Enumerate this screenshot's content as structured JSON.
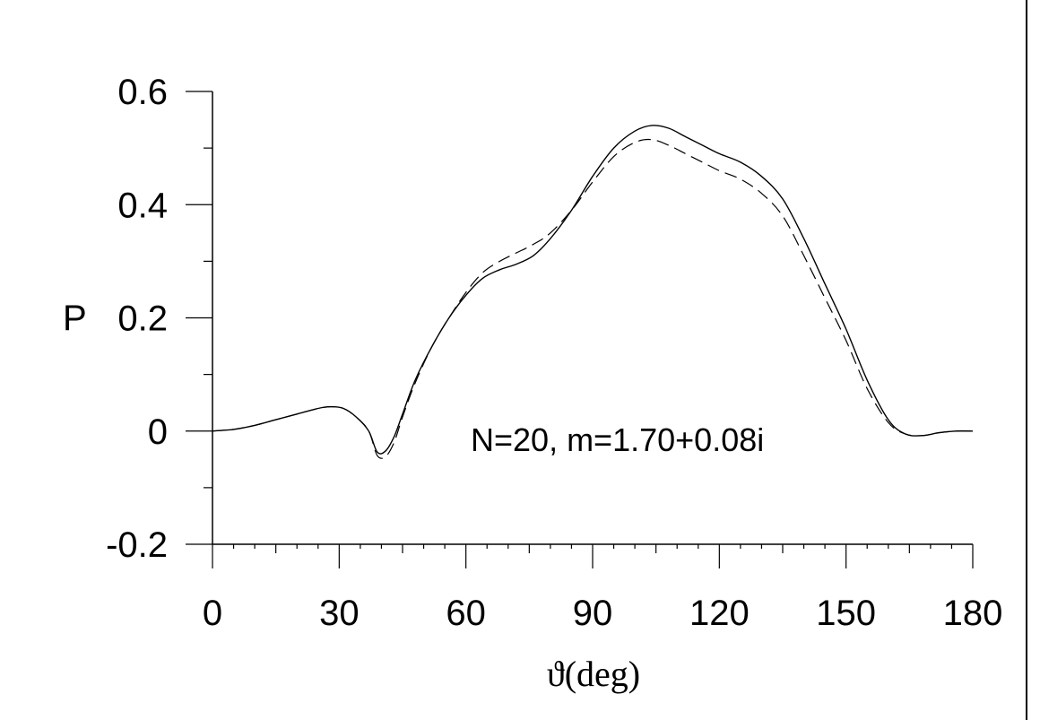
{
  "chart_data": {
    "type": "line",
    "title": "",
    "xlabel": "ϑ(deg)",
    "ylabel": "P",
    "xlim": [
      0,
      180
    ],
    "ylim": [
      -0.2,
      0.6
    ],
    "xticks": [
      0,
      30,
      60,
      90,
      120,
      150,
      180
    ],
    "yticks": [
      -0.2,
      0,
      0.2,
      0.4,
      0.6
    ],
    "xtick_labels": [
      "0",
      "30",
      "60",
      "90",
      "120",
      "150",
      "180"
    ],
    "ytick_labels": [
      "-0.2",
      "0",
      "0.2",
      "0.4",
      "0.6"
    ],
    "annotation": "N=20, m=1.70+0.08i",
    "grid": false,
    "series": [
      {
        "style": "solid",
        "x": [
          0,
          5,
          10,
          15,
          20,
          25,
          28,
          31,
          34,
          37,
          39,
          41,
          43,
          45,
          48,
          52,
          56,
          60,
          64,
          68,
          72,
          76,
          80,
          85,
          90,
          95,
          100,
          104,
          108,
          112,
          116,
          120,
          125,
          130,
          135,
          140,
          145,
          150,
          155,
          160,
          164,
          168,
          172,
          176,
          180
        ],
        "y": [
          0.0,
          0.003,
          0.01,
          0.02,
          0.03,
          0.04,
          0.043,
          0.04,
          0.025,
          0.0,
          -0.037,
          -0.035,
          -0.01,
          0.03,
          0.09,
          0.15,
          0.2,
          0.24,
          0.27,
          0.285,
          0.295,
          0.31,
          0.34,
          0.39,
          0.45,
          0.5,
          0.53,
          0.54,
          0.535,
          0.52,
          0.505,
          0.49,
          0.475,
          0.45,
          0.41,
          0.34,
          0.26,
          0.18,
          0.09,
          0.02,
          -0.005,
          -0.008,
          -0.003,
          0.0,
          0.0
        ]
      },
      {
        "style": "dashed",
        "x": [
          0,
          5,
          10,
          15,
          20,
          25,
          28,
          31,
          34,
          37,
          39,
          41,
          43,
          45,
          48,
          52,
          56,
          60,
          64,
          68,
          72,
          76,
          80,
          85,
          90,
          95,
          100,
          104,
          108,
          112,
          116,
          120,
          125,
          130,
          135,
          140,
          145,
          150,
          155,
          160,
          164,
          168,
          172,
          176,
          180
        ],
        "y": [
          0.0,
          0.003,
          0.01,
          0.02,
          0.03,
          0.04,
          0.043,
          0.04,
          0.025,
          0.0,
          -0.043,
          -0.045,
          -0.02,
          0.025,
          0.085,
          0.15,
          0.2,
          0.245,
          0.28,
          0.3,
          0.315,
          0.33,
          0.35,
          0.39,
          0.44,
          0.485,
          0.51,
          0.515,
          0.505,
          0.49,
          0.475,
          0.46,
          0.445,
          0.42,
          0.38,
          0.31,
          0.235,
          0.16,
          0.075,
          0.015,
          -0.005,
          -0.008,
          -0.003,
          0.0,
          0.0
        ]
      }
    ]
  }
}
